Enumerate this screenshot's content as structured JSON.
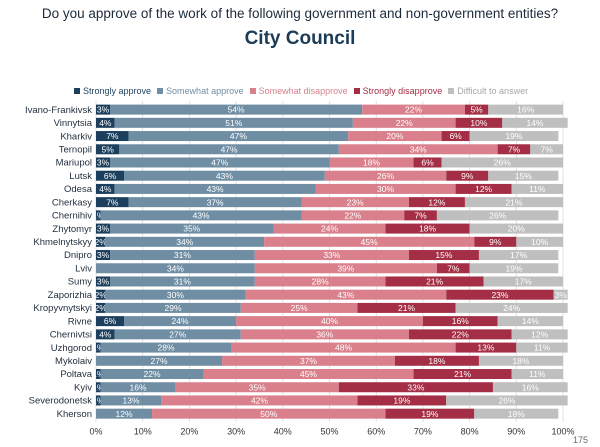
{
  "header": {
    "question": "Do you approve of the work of the following government and non-government entities?",
    "subtitle": "City Council"
  },
  "page_number": "175",
  "colors": {
    "strongly_approve": "#1d3f5e",
    "somewhat_approve": "#6f8ea4",
    "somewhat_disapprove": "#d9808c",
    "strongly_disapprove": "#a42e45",
    "difficult": "#bfbfbf",
    "legend_text": [
      "#1d3f5e",
      "#6f8ea4",
      "#d9808c",
      "#a42e45",
      "#a6a6a6"
    ]
  },
  "chart_data": {
    "type": "bar",
    "orientation": "horizontal",
    "stacked": true,
    "xlim": [
      0,
      100
    ],
    "x_ticks": [
      "0%",
      "10%",
      "20%",
      "30%",
      "40%",
      "50%",
      "60%",
      "70%",
      "80%",
      "90%",
      "100%"
    ],
    "grid": true,
    "legend_position": "top",
    "categories": [
      "Ivano-Frankivsk",
      "Vinnytsia",
      "Kharkiv",
      "Ternopil",
      "Mariupol",
      "Lutsk",
      "Odesa",
      "Cherkasy",
      "Chernihiv",
      "Zhytomyr",
      "Khmelnytskyy",
      "Dnipro",
      "Lviv",
      "Sumy",
      "Zaporizhia",
      "Kropyvnytskyi",
      "Rivne",
      "Chernivtsi",
      "Uzhgorod",
      "Mykolaiv",
      "Poltava",
      "Kyiv",
      "Severodonetsk",
      "Kherson"
    ],
    "series": [
      {
        "name": "Strongly approve",
        "values": [
          3,
          4,
          7,
          5,
          3,
          6,
          4,
          7,
          1,
          3,
          2,
          3,
          0,
          3,
          2,
          2,
          6,
          4,
          1,
          0,
          1,
          1,
          1,
          0
        ]
      },
      {
        "name": "Somewhat approve",
        "values": [
          54,
          51,
          47,
          47,
          47,
          43,
          43,
          37,
          43,
          35,
          34,
          31,
          34,
          31,
          30,
          29,
          24,
          27,
          28,
          27,
          22,
          16,
          13,
          12
        ]
      },
      {
        "name": "Somewhat disapprove",
        "values": [
          22,
          22,
          20,
          34,
          18,
          26,
          30,
          23,
          22,
          24,
          45,
          33,
          39,
          28,
          43,
          25,
          40,
          36,
          48,
          37,
          45,
          35,
          42,
          50
        ]
      },
      {
        "name": "Strongly disapprove",
        "values": [
          5,
          10,
          6,
          7,
          6,
          9,
          12,
          12,
          7,
          18,
          9,
          15,
          7,
          21,
          23,
          21,
          16,
          22,
          13,
          18,
          21,
          33,
          19,
          19
        ]
      },
      {
        "name": "Difficult to answer",
        "values": [
          16,
          14,
          19,
          7,
          26,
          15,
          11,
          21,
          26,
          20,
          10,
          17,
          19,
          17,
          3,
          24,
          14,
          12,
          11,
          18,
          11,
          16,
          26,
          18
        ]
      }
    ],
    "value_labels": [
      [
        "3%",
        "54%",
        "22%",
        "5%",
        "16%"
      ],
      [
        "4%",
        "51%",
        "22%",
        "10%",
        "14%"
      ],
      [
        "7%",
        "47%",
        "20%",
        "6%",
        "19%"
      ],
      [
        "5%",
        "47%",
        "34%",
        "7%",
        "7%"
      ],
      [
        "3%",
        "47%",
        "18%",
        "6%",
        "26%"
      ],
      [
        "6%",
        "43%",
        "26%",
        "9%",
        "15%"
      ],
      [
        "4%",
        "43%",
        "30%",
        "12%",
        "11%"
      ],
      [
        "7%",
        "37%",
        "23%",
        "12%",
        "21%"
      ],
      [
        "1%",
        "43%",
        "22%",
        "7%",
        "26%"
      ],
      [
        "3%",
        "35%",
        "24%",
        "18%",
        "20%"
      ],
      [
        "2%",
        "34%",
        "45%",
        "9%",
        "10%"
      ],
      [
        "3%",
        "31%",
        "33%",
        "15%",
        "17%"
      ],
      [
        "",
        "34%",
        "39%",
        "7%",
        "19%"
      ],
      [
        "3%",
        "31%",
        "28%",
        "21%",
        "17%"
      ],
      [
        "2%",
        "30%",
        "43%",
        "23%",
        "3%"
      ],
      [
        "2%",
        "29%",
        "25%",
        "21%",
        "24%"
      ],
      [
        "6%",
        "24%",
        "40%",
        "16%",
        "14%"
      ],
      [
        "4%",
        "27%",
        "36%",
        "22%",
        "12%"
      ],
      [
        "1%",
        "28%",
        "48%",
        "13%",
        "11%"
      ],
      [
        "",
        "27%",
        "37%",
        "18%",
        "18%"
      ],
      [
        "1%",
        "22%",
        "45%",
        "21%",
        "11%"
      ],
      [
        "1%",
        "16%",
        "35%",
        "33%",
        "16%"
      ],
      [
        "1%",
        "13%",
        "42%",
        "19%",
        "26%"
      ],
      [
        "",
        "12%",
        "50%",
        "19%",
        "18%"
      ]
    ]
  }
}
